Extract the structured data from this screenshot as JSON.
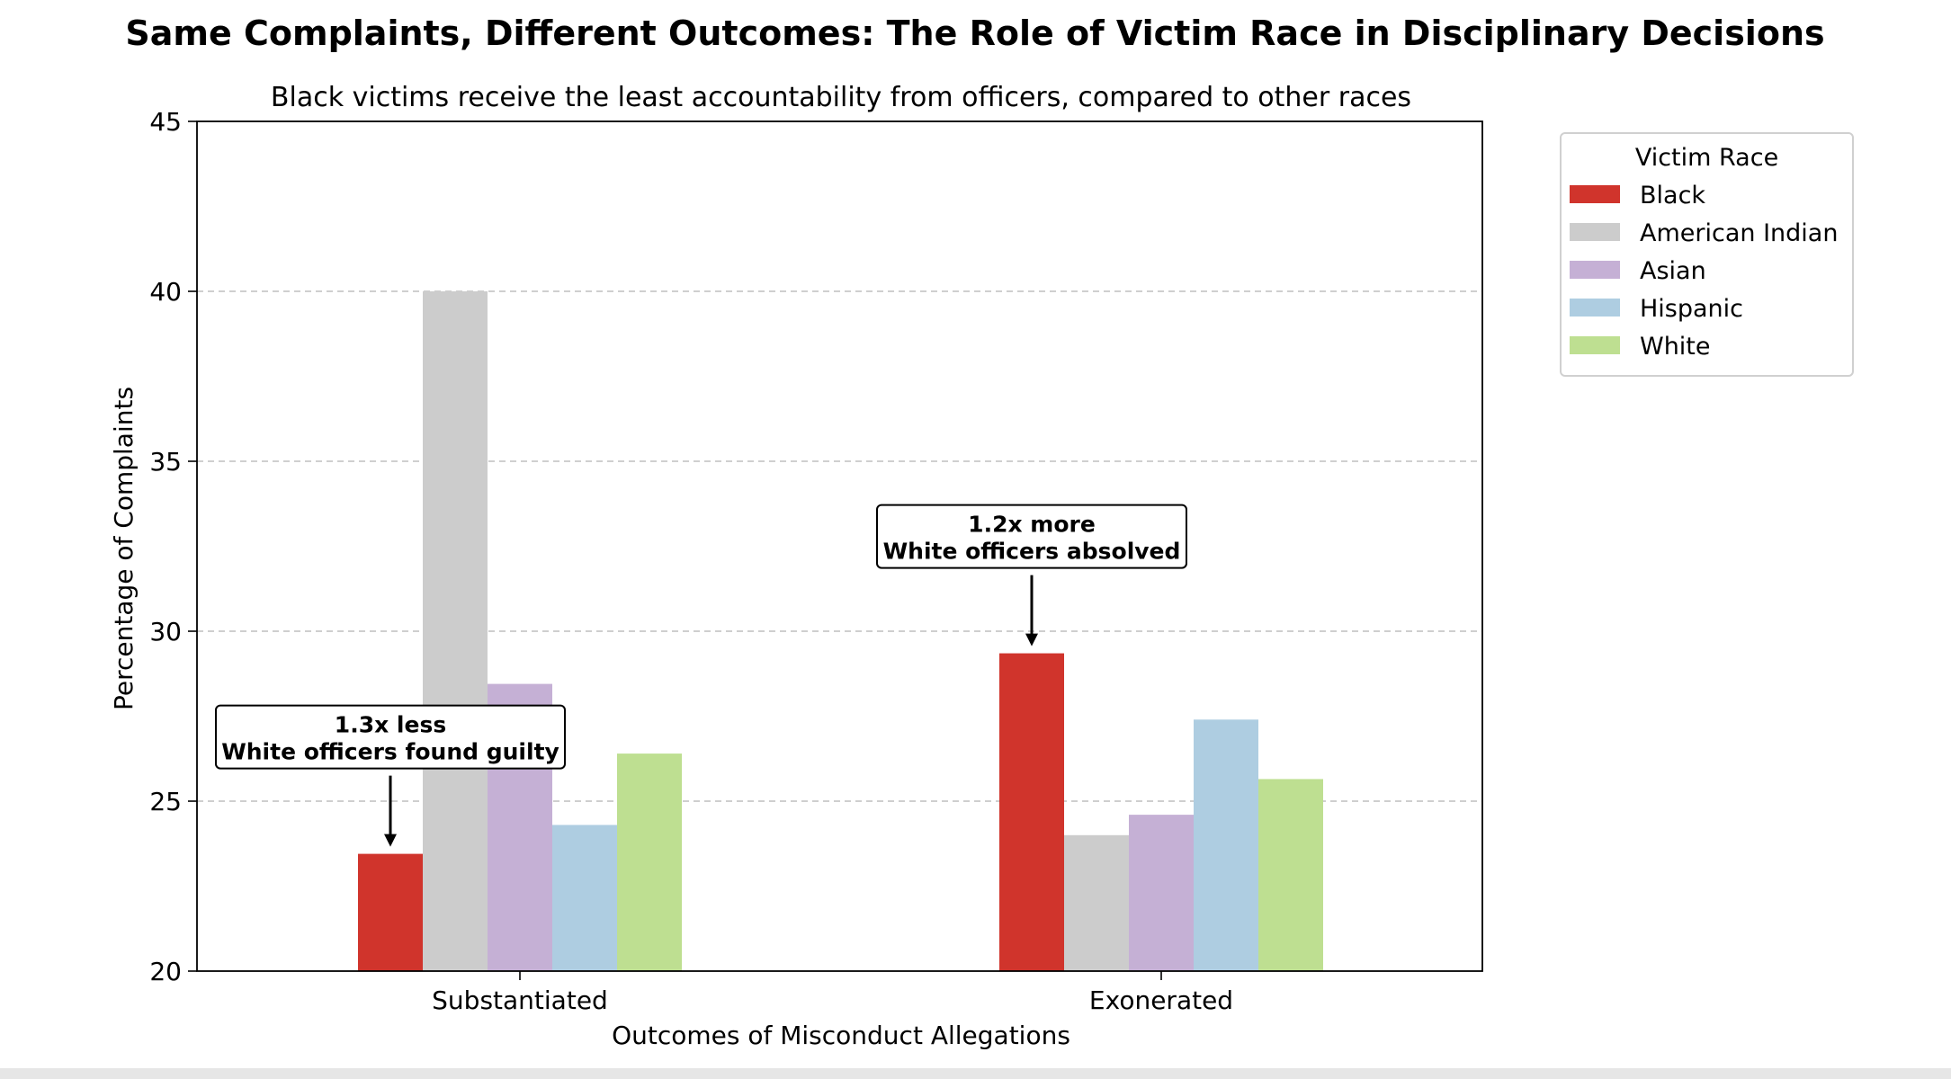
{
  "chart_data": {
    "type": "bar",
    "title": "Same Complaints, Different Outcomes: The Role of Victim Race in Disciplinary Decisions",
    "subtitle": "Black victims receive the least accountability from officers, compared to other races",
    "xlabel": "Outcomes of Misconduct Allegations",
    "ylabel": "Percentage of Complaints",
    "categories": [
      "Substantiated",
      "Exonerated"
    ],
    "ylim": [
      20,
      45
    ],
    "yticks": [
      20,
      25,
      30,
      35,
      40,
      45
    ],
    "grid": "y-dashed",
    "legend": {
      "title": "Victim Race",
      "placement": "outside-right-top"
    },
    "series": [
      {
        "name": "Black",
        "color": "#d0342c",
        "values": [
          23.45,
          29.35
        ]
      },
      {
        "name": "American Indian",
        "color": "#cccccc",
        "values": [
          40.0,
          24.0
        ]
      },
      {
        "name": "Asian",
        "color": "#c5b0d5",
        "values": [
          28.45,
          24.6
        ]
      },
      {
        "name": "Hispanic",
        "color": "#aecde1",
        "values": [
          24.3,
          27.4
        ]
      },
      {
        "name": "White",
        "color": "#bedf91",
        "values": [
          26.4,
          25.65
        ]
      }
    ],
    "annotations": [
      {
        "category": "Substantiated",
        "series": "Black",
        "line1": "1.3x less",
        "line2": "White officers found guilty"
      },
      {
        "category": "Exonerated",
        "series": "Black",
        "line1": "1.2x more",
        "line2": "White officers absolved"
      }
    ]
  }
}
